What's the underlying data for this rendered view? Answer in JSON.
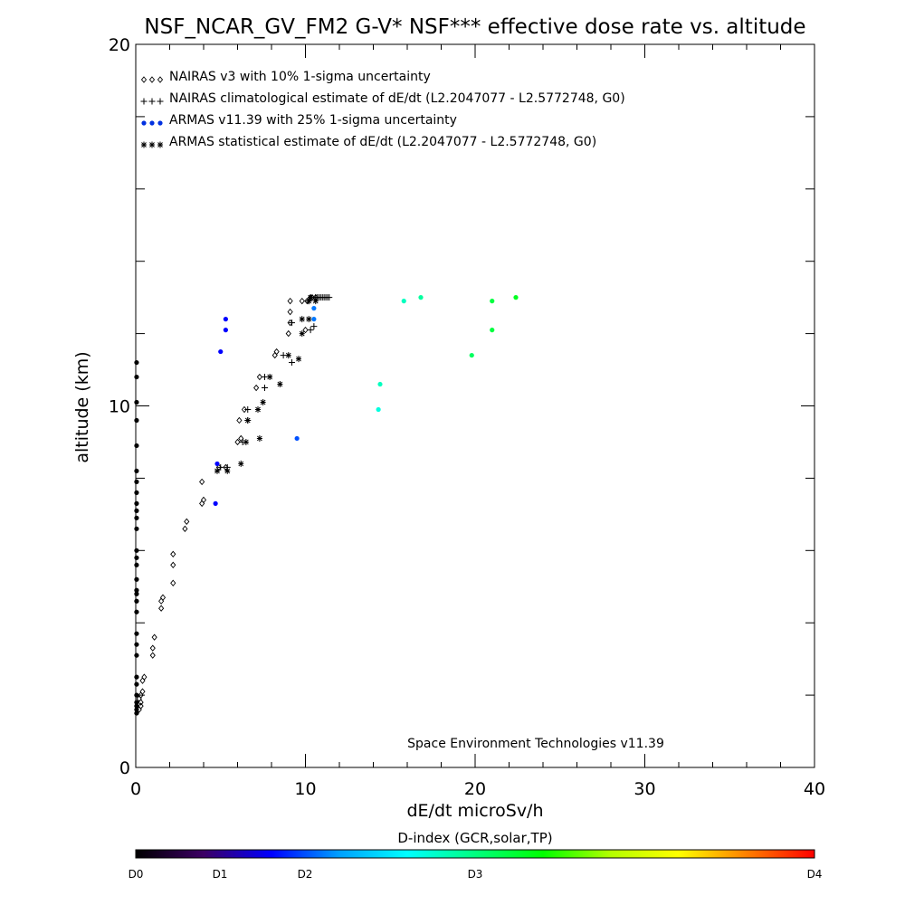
{
  "chart_data": {
    "type": "scatter",
    "title": "NSF_NCAR_GV_FM2 G-V* NSF*** effective dose rate vs. altitude",
    "xlabel": "dE/dt microSv/h",
    "ylabel": "altitude (km)",
    "xlim": [
      0,
      40
    ],
    "ylim": [
      0,
      20
    ],
    "x_ticks": [
      "0",
      "10",
      "20",
      "30",
      "40"
    ],
    "y_ticks": [
      "0",
      "10",
      "20"
    ],
    "grid": false,
    "legend_position": "top-left",
    "annotation": "Space Environment Technologies v11.39",
    "colorbar": {
      "label": "D-index (GCR,solar,TP)",
      "ticks": [
        {
          "label": "D0",
          "value": 0
        },
        {
          "label": "D1",
          "value": 1
        },
        {
          "label": "D2",
          "value": 2
        },
        {
          "label": "D3",
          "value": 3
        },
        {
          "label": "D4",
          "value": 4
        }
      ],
      "colors": [
        "#000000",
        "#3c0064",
        "#0000ff",
        "#00a0ff",
        "#00ffff",
        "#00ff7f",
        "#00ff00",
        "#b4ff00",
        "#ffff00",
        "#ff8000",
        "#ff0000"
      ]
    },
    "series": [
      {
        "name": "NAIRAS v3 with 10% 1-sigma uncertainty",
        "marker": "diamond",
        "color": "#000000",
        "points": [
          [
            0.2,
            1.6
          ],
          [
            0.3,
            1.7
          ],
          [
            0.3,
            1.8
          ],
          [
            0.2,
            1.9
          ],
          [
            0.3,
            2.0
          ],
          [
            0.4,
            2.1
          ],
          [
            0.4,
            2.4
          ],
          [
            0.5,
            2.5
          ],
          [
            1.0,
            3.1
          ],
          [
            1.0,
            3.3
          ],
          [
            1.1,
            3.6
          ],
          [
            1.5,
            4.4
          ],
          [
            1.5,
            4.6
          ],
          [
            1.6,
            4.7
          ],
          [
            2.2,
            5.1
          ],
          [
            2.2,
            5.6
          ],
          [
            2.2,
            5.9
          ],
          [
            2.9,
            6.6
          ],
          [
            3.0,
            6.8
          ],
          [
            3.9,
            7.3
          ],
          [
            4.0,
            7.4
          ],
          [
            3.9,
            7.9
          ],
          [
            4.9,
            8.3
          ],
          [
            5.3,
            8.3
          ],
          [
            6.0,
            9.0
          ],
          [
            6.2,
            9.1
          ],
          [
            6.1,
            9.6
          ],
          [
            6.4,
            9.9
          ],
          [
            7.1,
            10.5
          ],
          [
            7.3,
            10.8
          ],
          [
            8.2,
            11.4
          ],
          [
            8.3,
            11.5
          ],
          [
            9.0,
            12.0
          ],
          [
            9.1,
            12.3
          ],
          [
            9.1,
            12.6
          ],
          [
            9.1,
            12.9
          ],
          [
            9.8,
            12.9
          ],
          [
            10.0,
            12.1
          ],
          [
            10.1,
            12.9
          ],
          [
            10.3,
            13.0
          ],
          [
            10.4,
            13.0
          ],
          [
            10.6,
            13.0
          ]
        ]
      },
      {
        "name": "NAIRAS climatological estimate of dE/dt (L2.2047077 - L2.5772748, G0)",
        "marker": "plus",
        "color": "#000000",
        "points": [
          [
            5.0,
            8.3
          ],
          [
            5.4,
            8.3
          ],
          [
            6.3,
            9.0
          ],
          [
            6.6,
            9.6
          ],
          [
            6.6,
            9.9
          ],
          [
            7.6,
            10.5
          ],
          [
            7.6,
            10.8
          ],
          [
            8.7,
            11.4
          ],
          [
            9.2,
            11.2
          ],
          [
            9.2,
            12.3
          ],
          [
            10.3,
            12.1
          ],
          [
            10.5,
            12.2
          ],
          [
            10.2,
            12.9
          ],
          [
            10.6,
            13.0
          ],
          [
            10.7,
            13.0
          ],
          [
            10.8,
            13.0
          ],
          [
            10.9,
            13.0
          ],
          [
            11.0,
            13.0
          ],
          [
            11.1,
            13.0
          ],
          [
            11.2,
            13.0
          ],
          [
            11.3,
            13.0
          ],
          [
            11.4,
            13.0
          ]
        ]
      },
      {
        "name": "ARMAS v11.39 with 25% 1-sigma uncertainty",
        "marker": "dot",
        "color": "#0030e0",
        "points": [
          [
            0.05,
            11.2
          ],
          [
            0.05,
            10.8
          ],
          [
            0.05,
            10.1
          ],
          [
            0.05,
            9.6
          ],
          [
            0.05,
            8.9
          ],
          [
            0.05,
            8.2
          ],
          [
            0.05,
            7.9
          ],
          [
            0.05,
            7.6
          ],
          [
            0.05,
            7.3
          ],
          [
            0.05,
            7.1
          ],
          [
            0.05,
            6.9
          ],
          [
            0.05,
            6.6
          ],
          [
            0.05,
            6.0
          ],
          [
            0.05,
            5.8
          ],
          [
            0.05,
            5.6
          ],
          [
            0.05,
            5.2
          ],
          [
            0.05,
            4.9
          ],
          [
            0.05,
            4.8
          ],
          [
            0.05,
            4.6
          ],
          [
            0.05,
            4.3
          ],
          [
            0.05,
            3.7
          ],
          [
            0.05,
            3.4
          ],
          [
            0.05,
            3.1
          ],
          [
            0.05,
            2.5
          ],
          [
            0.05,
            2.3
          ],
          [
            0.05,
            2.0
          ],
          [
            0.05,
            1.8
          ],
          [
            0.05,
            1.7
          ],
          [
            0.05,
            1.6
          ],
          [
            0.05,
            1.5
          ]
        ],
        "dindex_colored_points": [
          {
            "x": 5.3,
            "y": 12.4,
            "d": 0.8
          },
          {
            "x": 5.3,
            "y": 12.1,
            "d": 0.8
          },
          {
            "x": 5.0,
            "y": 11.5,
            "d": 0.8
          },
          {
            "x": 4.7,
            "y": 7.3,
            "d": 0.8
          },
          {
            "x": 4.8,
            "y": 8.4,
            "d": 0.8
          },
          {
            "x": 9.5,
            "y": 9.1,
            "d": 1.0
          },
          {
            "x": 10.5,
            "y": 12.7,
            "d": 1.1
          },
          {
            "x": 10.5,
            "y": 12.4,
            "d": 1.1
          },
          {
            "x": 14.3,
            "y": 9.9,
            "d": 1.7
          },
          {
            "x": 14.4,
            "y": 10.6,
            "d": 1.8
          },
          {
            "x": 15.8,
            "y": 12.9,
            "d": 1.8
          },
          {
            "x": 16.8,
            "y": 13.0,
            "d": 1.9
          },
          {
            "x": 19.8,
            "y": 11.4,
            "d": 2.1
          },
          {
            "x": 21.0,
            "y": 12.1,
            "d": 2.2
          },
          {
            "x": 21.0,
            "y": 12.9,
            "d": 2.2
          },
          {
            "x": 22.4,
            "y": 13.0,
            "d": 2.3
          }
        ]
      },
      {
        "name": "ARMAS statistical estimate of dE/dt (L2.2047077 - L2.5772748, G0)",
        "marker": "asterisk",
        "color": "#000000",
        "points": [
          [
            4.8,
            8.2
          ],
          [
            5.4,
            8.2
          ],
          [
            6.2,
            8.4
          ],
          [
            6.5,
            9.0
          ],
          [
            7.3,
            9.1
          ],
          [
            6.6,
            9.6
          ],
          [
            7.2,
            9.9
          ],
          [
            7.5,
            10.1
          ],
          [
            7.9,
            10.8
          ],
          [
            8.5,
            10.6
          ],
          [
            9.0,
            11.4
          ],
          [
            9.6,
            11.3
          ],
          [
            9.8,
            12.0
          ],
          [
            9.8,
            12.4
          ],
          [
            10.2,
            12.4
          ],
          [
            10.2,
            12.9
          ],
          [
            10.3,
            13.0
          ],
          [
            10.6,
            12.9
          ]
        ]
      }
    ]
  }
}
